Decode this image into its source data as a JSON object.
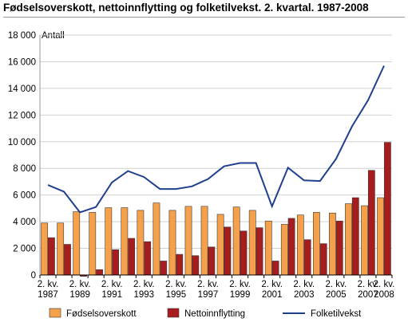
{
  "chart_data": {
    "type": "bar",
    "title": "Fødselsoverskott, nettoinnflytting og folketilvekst. 2. kvartal. 1987-2008",
    "ylabel": "Antall",
    "xlabel": "",
    "ylim": [
      0,
      18000
    ],
    "yticks": [
      "0",
      "2 000",
      "4 000",
      "6 000",
      "8 000",
      "10 000",
      "12 000",
      "14 000",
      "16 000",
      "18 000"
    ],
    "ytick_values": [
      0,
      2000,
      4000,
      6000,
      8000,
      10000,
      12000,
      14000,
      16000,
      18000
    ],
    "x": [
      1987,
      1988,
      1989,
      1990,
      1991,
      1992,
      1993,
      1994,
      1995,
      1996,
      1997,
      1998,
      1999,
      2000,
      2001,
      2002,
      2003,
      2004,
      2005,
      2006,
      2007,
      2008
    ],
    "x_tick_labels": [
      {
        "line1": "2. kv.",
        "line2": "1987"
      },
      {
        "line1": "2. kv.",
        "line2": "1989"
      },
      {
        "line1": "2. kv.",
        "line2": "1991"
      },
      {
        "line1": "2. kv.",
        "line2": "1993"
      },
      {
        "line1": "2. kv.",
        "line2": "1995"
      },
      {
        "line1": "2. kv.",
        "line2": "1997"
      },
      {
        "line1": "2. kv.",
        "line2": "1999"
      },
      {
        "line1": "2. kv.",
        "line2": "2001"
      },
      {
        "line1": "2. kv.",
        "line2": "2003"
      },
      {
        "line1": "2. kv.",
        "line2": "2005"
      },
      {
        "line1": "2. kv.",
        "line2": "2007"
      },
      {
        "line1": "2. kv.",
        "line2": "2008"
      }
    ],
    "series": [
      {
        "name": "Fødselsoverskott",
        "kind": "bar",
        "color": "#f5a04b",
        "values": [
          3900,
          3900,
          4750,
          4700,
          5050,
          5050,
          4850,
          5400,
          4850,
          5150,
          5150,
          4550,
          5100,
          4850,
          4050,
          3800,
          4500,
          4700,
          4650,
          5350,
          5200,
          5800
        ]
      },
      {
        "name": "Nettoinnflytting",
        "kind": "bar",
        "color": "#a71d1d",
        "values": [
          2800,
          2300,
          -100,
          400,
          1900,
          2750,
          2500,
          1050,
          1550,
          1450,
          2100,
          3600,
          3300,
          3550,
          1050,
          4250,
          2650,
          2350,
          4050,
          5800,
          7850,
          9950
        ]
      },
      {
        "name": "Folketilvekst",
        "kind": "line",
        "color": "#1f3f8f",
        "values": [
          6750,
          6250,
          4700,
          5100,
          6950,
          7800,
          7350,
          6450,
          6450,
          6650,
          7200,
          8150,
          8400,
          8400,
          5150,
          8050,
          7100,
          7050,
          8700,
          11150,
          13100,
          15700
        ]
      }
    ],
    "grid": true,
    "legend_position": "bottom"
  }
}
